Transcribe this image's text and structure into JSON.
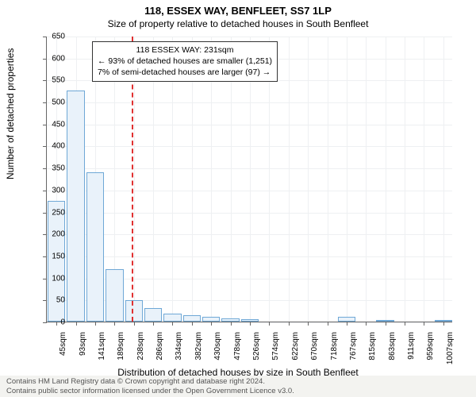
{
  "title_main": "118, ESSEX WAY, BENFLEET, SS7 1LP",
  "title_sub": "Size of property relative to detached houses in South Benfleet",
  "y_axis_label": "Number of detached properties",
  "x_axis_label": "Distribution of detached houses by size in South Benfleet",
  "chart": {
    "type": "histogram",
    "ylim": [
      0,
      650
    ],
    "ytick_step": 50,
    "yticks": [
      0,
      50,
      100,
      150,
      200,
      250,
      300,
      350,
      400,
      450,
      500,
      550,
      600,
      650
    ],
    "x_labels": [
      "45sqm",
      "93sqm",
      "141sqm",
      "189sqm",
      "238sqm",
      "286sqm",
      "334sqm",
      "382sqm",
      "430sqm",
      "478sqm",
      "526sqm",
      "574sqm",
      "622sqm",
      "670sqm",
      "718sqm",
      "767sqm",
      "815sqm",
      "863sqm",
      "911sqm",
      "959sqm",
      "1007sqm"
    ],
    "bars": [
      275,
      525,
      340,
      120,
      48,
      30,
      18,
      15,
      10,
      8,
      6,
      0,
      0,
      0,
      0,
      10,
      0,
      4,
      0,
      0,
      4
    ],
    "bar_fill": "#e9f2fa",
    "bar_border": "#6fa8d6",
    "grid_color": "#eef0f2",
    "background": "#ffffff",
    "axis_color": "#666666"
  },
  "reference_line": {
    "color": "#e03030",
    "position_index": 3.88,
    "style": "dashed"
  },
  "annotation": {
    "line1": "118 ESSEX WAY: 231sqm",
    "line2": "← 93% of detached houses are smaller (1,251)",
    "line3": "7% of semi-detached houses are larger (97) →"
  },
  "footer": {
    "line1": "Contains HM Land Registry data © Crown copyright and database right 2024.",
    "line2": "Contains public sector information licensed under the Open Government Licence v3.0."
  }
}
